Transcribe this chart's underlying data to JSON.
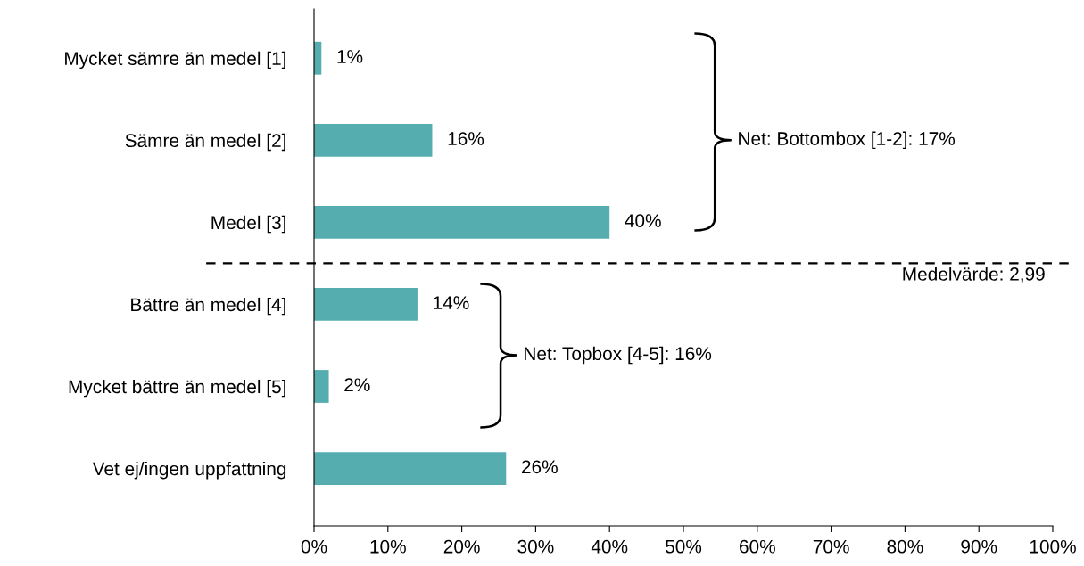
{
  "chart_data": {
    "type": "bar",
    "orientation": "horizontal",
    "categories": [
      "Mycket sämre än medel [1]",
      "Sämre än medel [2]",
      "Medel [3]",
      "Bättre än medel [4]",
      "Mycket bättre än medel [5]",
      "Vet ej/ingen uppfattning"
    ],
    "values": [
      1,
      16,
      40,
      14,
      2,
      26
    ],
    "value_labels": [
      "1%",
      "16%",
      "40%",
      "14%",
      "2%",
      "26%"
    ],
    "color": "#56adb0",
    "xlim": [
      0,
      100
    ],
    "xticks": [
      {
        "value": 0,
        "label": "0%"
      },
      {
        "value": 10,
        "label": "10%"
      },
      {
        "value": 20,
        "label": "20%"
      },
      {
        "value": 30,
        "label": "30%"
      },
      {
        "value": 40,
        "label": "40%"
      },
      {
        "value": 50,
        "label": "50%"
      },
      {
        "value": 60,
        "label": "60%"
      },
      {
        "value": 70,
        "label": "70%"
      },
      {
        "value": 80,
        "label": "80%"
      },
      {
        "value": 90,
        "label": "90%"
      },
      {
        "value": 100,
        "label": "100%"
      }
    ],
    "annotations": [
      "Net: Bottombox [1-2]: 17%",
      "Net: Topbox [4-5]: 16%",
      "Medelvärde: 2,99"
    ],
    "grid": false,
    "legend": false
  }
}
